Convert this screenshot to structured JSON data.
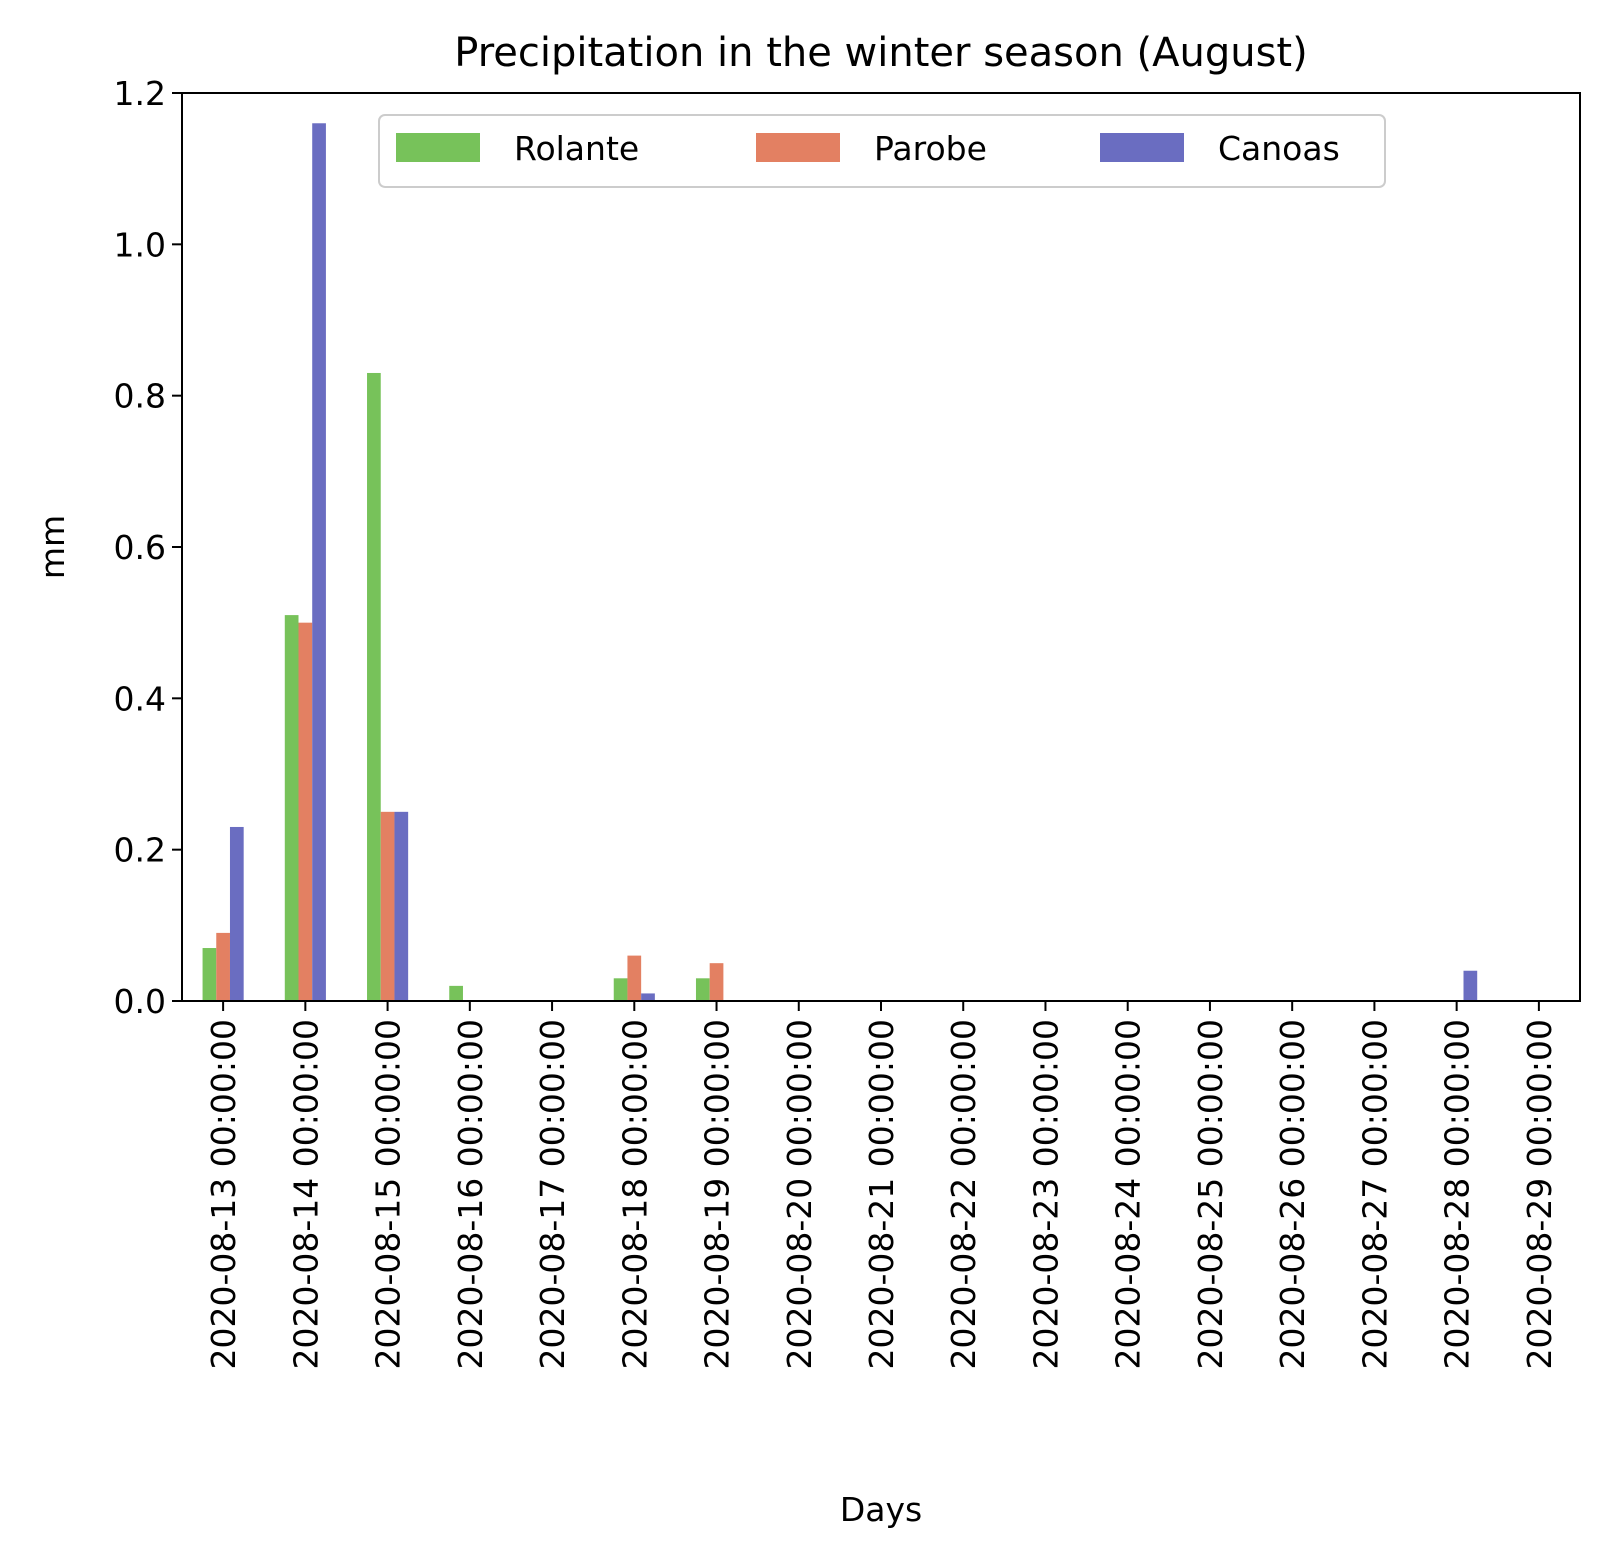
{
  "chart_data": {
    "type": "bar",
    "title": "Precipitation in the winter season (August)",
    "xlabel": "Days",
    "ylabel": "mm",
    "ylim": [
      0,
      1.2
    ],
    "yticks": [
      "0.0",
      "0.2",
      "0.4",
      "0.6",
      "0.8",
      "1.0",
      "1.2"
    ],
    "grid": false,
    "legend_position": "top-center",
    "categories": [
      "2020-08-13 00:00:00",
      "2020-08-14 00:00:00",
      "2020-08-15 00:00:00",
      "2020-08-16 00:00:00",
      "2020-08-17 00:00:00",
      "2020-08-18 00:00:00",
      "2020-08-19 00:00:00",
      "2020-08-20 00:00:00",
      "2020-08-21 00:00:00",
      "2020-08-22 00:00:00",
      "2020-08-23 00:00:00",
      "2020-08-24 00:00:00",
      "2020-08-25 00:00:00",
      "2020-08-26 00:00:00",
      "2020-08-27 00:00:00",
      "2020-08-28 00:00:00",
      "2020-08-29 00:00:00"
    ],
    "series": [
      {
        "name": "Rolante",
        "color": "#77c25a",
        "values": [
          0.07,
          0.51,
          0.83,
          0.02,
          0,
          0.03,
          0.03,
          0,
          0,
          0,
          0,
          0,
          0,
          0,
          0,
          0,
          0
        ]
      },
      {
        "name": "Parobe",
        "color": "#e38062",
        "values": [
          0.09,
          0.5,
          0.25,
          0,
          0,
          0.06,
          0.05,
          0,
          0,
          0,
          0,
          0,
          0,
          0,
          0,
          0,
          0
        ]
      },
      {
        "name": "Canoas",
        "color": "#6a6dc1",
        "values": [
          0.23,
          1.16,
          0.25,
          0,
          0,
          0.01,
          0,
          0,
          0,
          0,
          0,
          0,
          0,
          0,
          0,
          0.04,
          0
        ]
      }
    ]
  }
}
